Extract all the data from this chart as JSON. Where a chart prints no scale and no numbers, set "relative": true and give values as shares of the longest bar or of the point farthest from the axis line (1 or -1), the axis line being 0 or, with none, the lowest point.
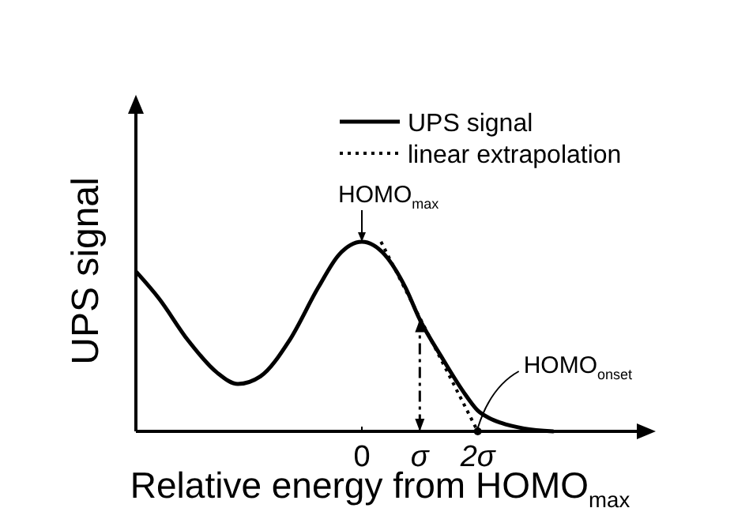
{
  "chart_data": {
    "type": "line",
    "relative": true,
    "xlabel": "Relative energy from HOMO$_{max}$",
    "ylabel": "UPS signal",
    "xlim": [
      -3.9,
      4.8
    ],
    "xticks": [
      0,
      {
        "value": 1,
        "label": "σ"
      },
      {
        "value": 2,
        "label": "2σ"
      }
    ],
    "legend": "top right",
    "grid": false,
    "series": [
      {
        "name": "UPS signal",
        "color": "#000000",
        "line_style": "solid",
        "x": [
          -3.89,
          -3.5,
          -3.0,
          -2.5,
          -2.14,
          -1.75,
          -1.25,
          -0.75,
          -0.4,
          0,
          0.4,
          0.75,
          1,
          1.4,
          1.75,
          2,
          2.2,
          2.4,
          2.8,
          3.3
        ],
        "values": [
          0.84,
          0.7,
          0.48,
          0.31,
          0.25,
          0.29,
          0.48,
          0.76,
          0.93,
          1,
          0.93,
          0.76,
          0.59,
          0.38,
          0.21,
          0.11,
          0.07,
          0.045,
          0.015,
          0
        ]
      },
      {
        "name": "linear extrapolation",
        "color": "#000000",
        "line_style": "dotted",
        "x": [
          0.33,
          2.0
        ],
        "values": [
          1.0,
          0
        ]
      }
    ],
    "ref_lines": [
      {
        "axis": "x",
        "value": 1,
        "line_style": "dashdot"
      }
    ],
    "annotations": [
      {
        "text": "HOMO$_{max}$",
        "x": 0,
        "y": 1
      },
      {
        "text": "HOMO$_{onset}$",
        "x": 2,
        "y": 0
      }
    ]
  }
}
